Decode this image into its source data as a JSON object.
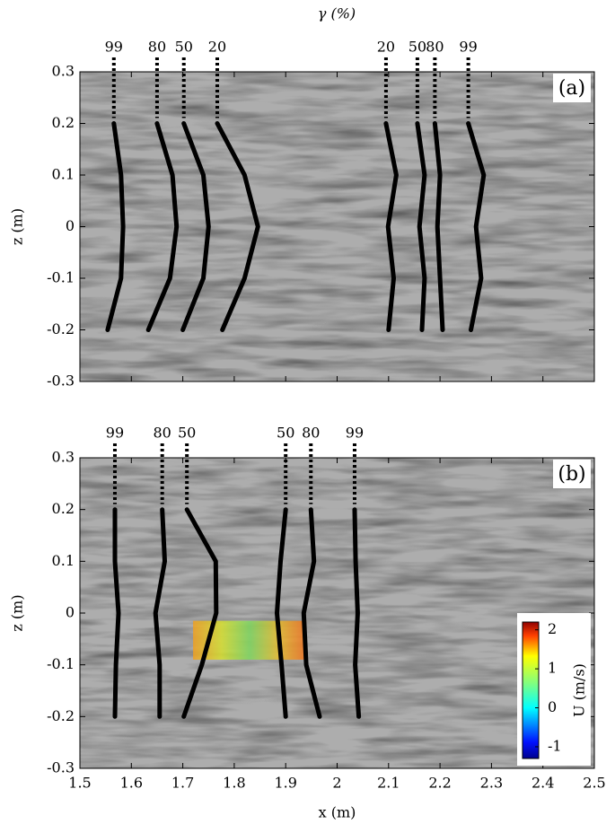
{
  "chart_data": [
    {
      "type": "line",
      "title": "γ (%)",
      "panel_label": "(a)",
      "y_label": "z (m)",
      "xlim": [
        1.5,
        2.5
      ],
      "xticks": [
        1.5,
        1.6,
        1.7,
        1.8,
        1.9,
        2,
        2.1,
        2.2,
        2.3,
        2.4,
        2.5
      ],
      "show_xtick_labels": false,
      "ylim": [
        -0.3,
        0.3
      ],
      "yticks": [
        0.3,
        0.2,
        0.1,
        0,
        -0.1,
        -0.2,
        -0.3
      ],
      "z": [
        0.2,
        0.1,
        0,
        -0.1,
        -0.2
      ],
      "series": [
        {
          "name": "99",
          "color": "#000000",
          "values": [
            1.566,
            1.58,
            1.584,
            1.58,
            1.554
          ]
        },
        {
          "name": "80",
          "color": "#000000",
          "values": [
            1.65,
            1.68,
            1.688,
            1.675,
            1.633
          ]
        },
        {
          "name": "50",
          "color": "#000000",
          "values": [
            1.702,
            1.74,
            1.75,
            1.74,
            1.7
          ]
        },
        {
          "name": "20",
          "color": "#000000",
          "values": [
            1.767,
            1.82,
            1.846,
            1.82,
            1.777
          ]
        },
        {
          "name": "20",
          "color": "#000000",
          "values": [
            2.095,
            2.115,
            2.099,
            2.11,
            2.1
          ]
        },
        {
          "name": "50",
          "color": "#000000",
          "values": [
            2.156,
            2.17,
            2.16,
            2.17,
            2.165
          ]
        },
        {
          "name": "80",
          "color": "#000000",
          "values": [
            2.19,
            2.2,
            2.195,
            2.2,
            2.205
          ]
        },
        {
          "name": "99",
          "color": "#000000",
          "values": [
            2.255,
            2.285,
            2.27,
            2.28,
            2.26
          ]
        }
      ]
    },
    {
      "type": "line",
      "panel_label": "(b)",
      "y_label": "z (m)",
      "x_label": "x (m)",
      "xlim": [
        1.5,
        2.5
      ],
      "xticks": [
        1.5,
        1.6,
        1.7,
        1.8,
        1.9,
        2,
        2.1,
        2.2,
        2.3,
        2.4,
        2.5
      ],
      "show_xtick_labels": true,
      "ylim": [
        -0.3,
        0.3
      ],
      "yticks": [
        0.3,
        0.2,
        0.1,
        0,
        -0.1,
        -0.2,
        -0.3
      ],
      "z": [
        0.2,
        0.1,
        0,
        -0.1,
        -0.2
      ],
      "series": [
        {
          "name": "99",
          "color": "#000000",
          "values": [
            1.568,
            1.568,
            1.575,
            1.57,
            1.568
          ]
        },
        {
          "name": "80",
          "color": "#000000",
          "values": [
            1.66,
            1.665,
            1.647,
            1.655,
            1.655
          ]
        },
        {
          "name": "50",
          "color": "#000000",
          "values": [
            1.708,
            1.764,
            1.765,
            1.737,
            1.702
          ]
        },
        {
          "name": "50",
          "color": "#000000",
          "values": [
            1.9,
            1.89,
            1.883,
            1.892,
            1.9
          ]
        },
        {
          "name": "80",
          "color": "#000000",
          "values": [
            1.949,
            1.955,
            1.935,
            1.94,
            1.966
          ]
        },
        {
          "name": "99",
          "color": "#000000",
          "values": [
            2.034,
            2.036,
            2.04,
            2.035,
            2.042
          ]
        }
      ],
      "piv_window": {
        "x": [
          1.72,
          1.94
        ],
        "z": [
          -0.09,
          -0.015
        ]
      },
      "colorbar": {
        "label": "U (m/s)",
        "lim": [
          -1.3,
          2.2
        ],
        "ticks": [
          2,
          1,
          0,
          -1
        ]
      }
    }
  ]
}
